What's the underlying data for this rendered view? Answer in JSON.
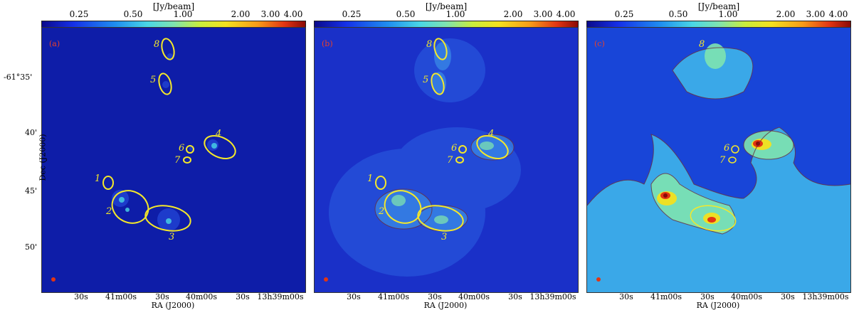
{
  "colorbar": {
    "unit": "[Jy/beam]",
    "ticks": [
      "0.25",
      "0.50",
      "1.00",
      "2.00",
      "3.00",
      "4.00"
    ]
  },
  "panels": [
    {
      "label": "(a)"
    },
    {
      "label": "(b)"
    },
    {
      "label": "(c)"
    }
  ],
  "axes": {
    "xlabel": "RA (J2000)",
    "ylabel": "Dec (J2000)",
    "xticks": [
      "30s",
      "41m00s",
      "30s",
      "40m00s",
      "30s",
      "13h39m00s"
    ],
    "yticks": [
      "-61°35'",
      "40'",
      "45'",
      "50'"
    ]
  },
  "sources": [
    "1",
    "2",
    "3",
    "4",
    "5",
    "6",
    "7",
    "8"
  ],
  "colors": {
    "ellipse": "#f4e82a",
    "contour": "#6a2a3a",
    "background": "#1a30c8",
    "source_label": "#f4e82a"
  }
}
